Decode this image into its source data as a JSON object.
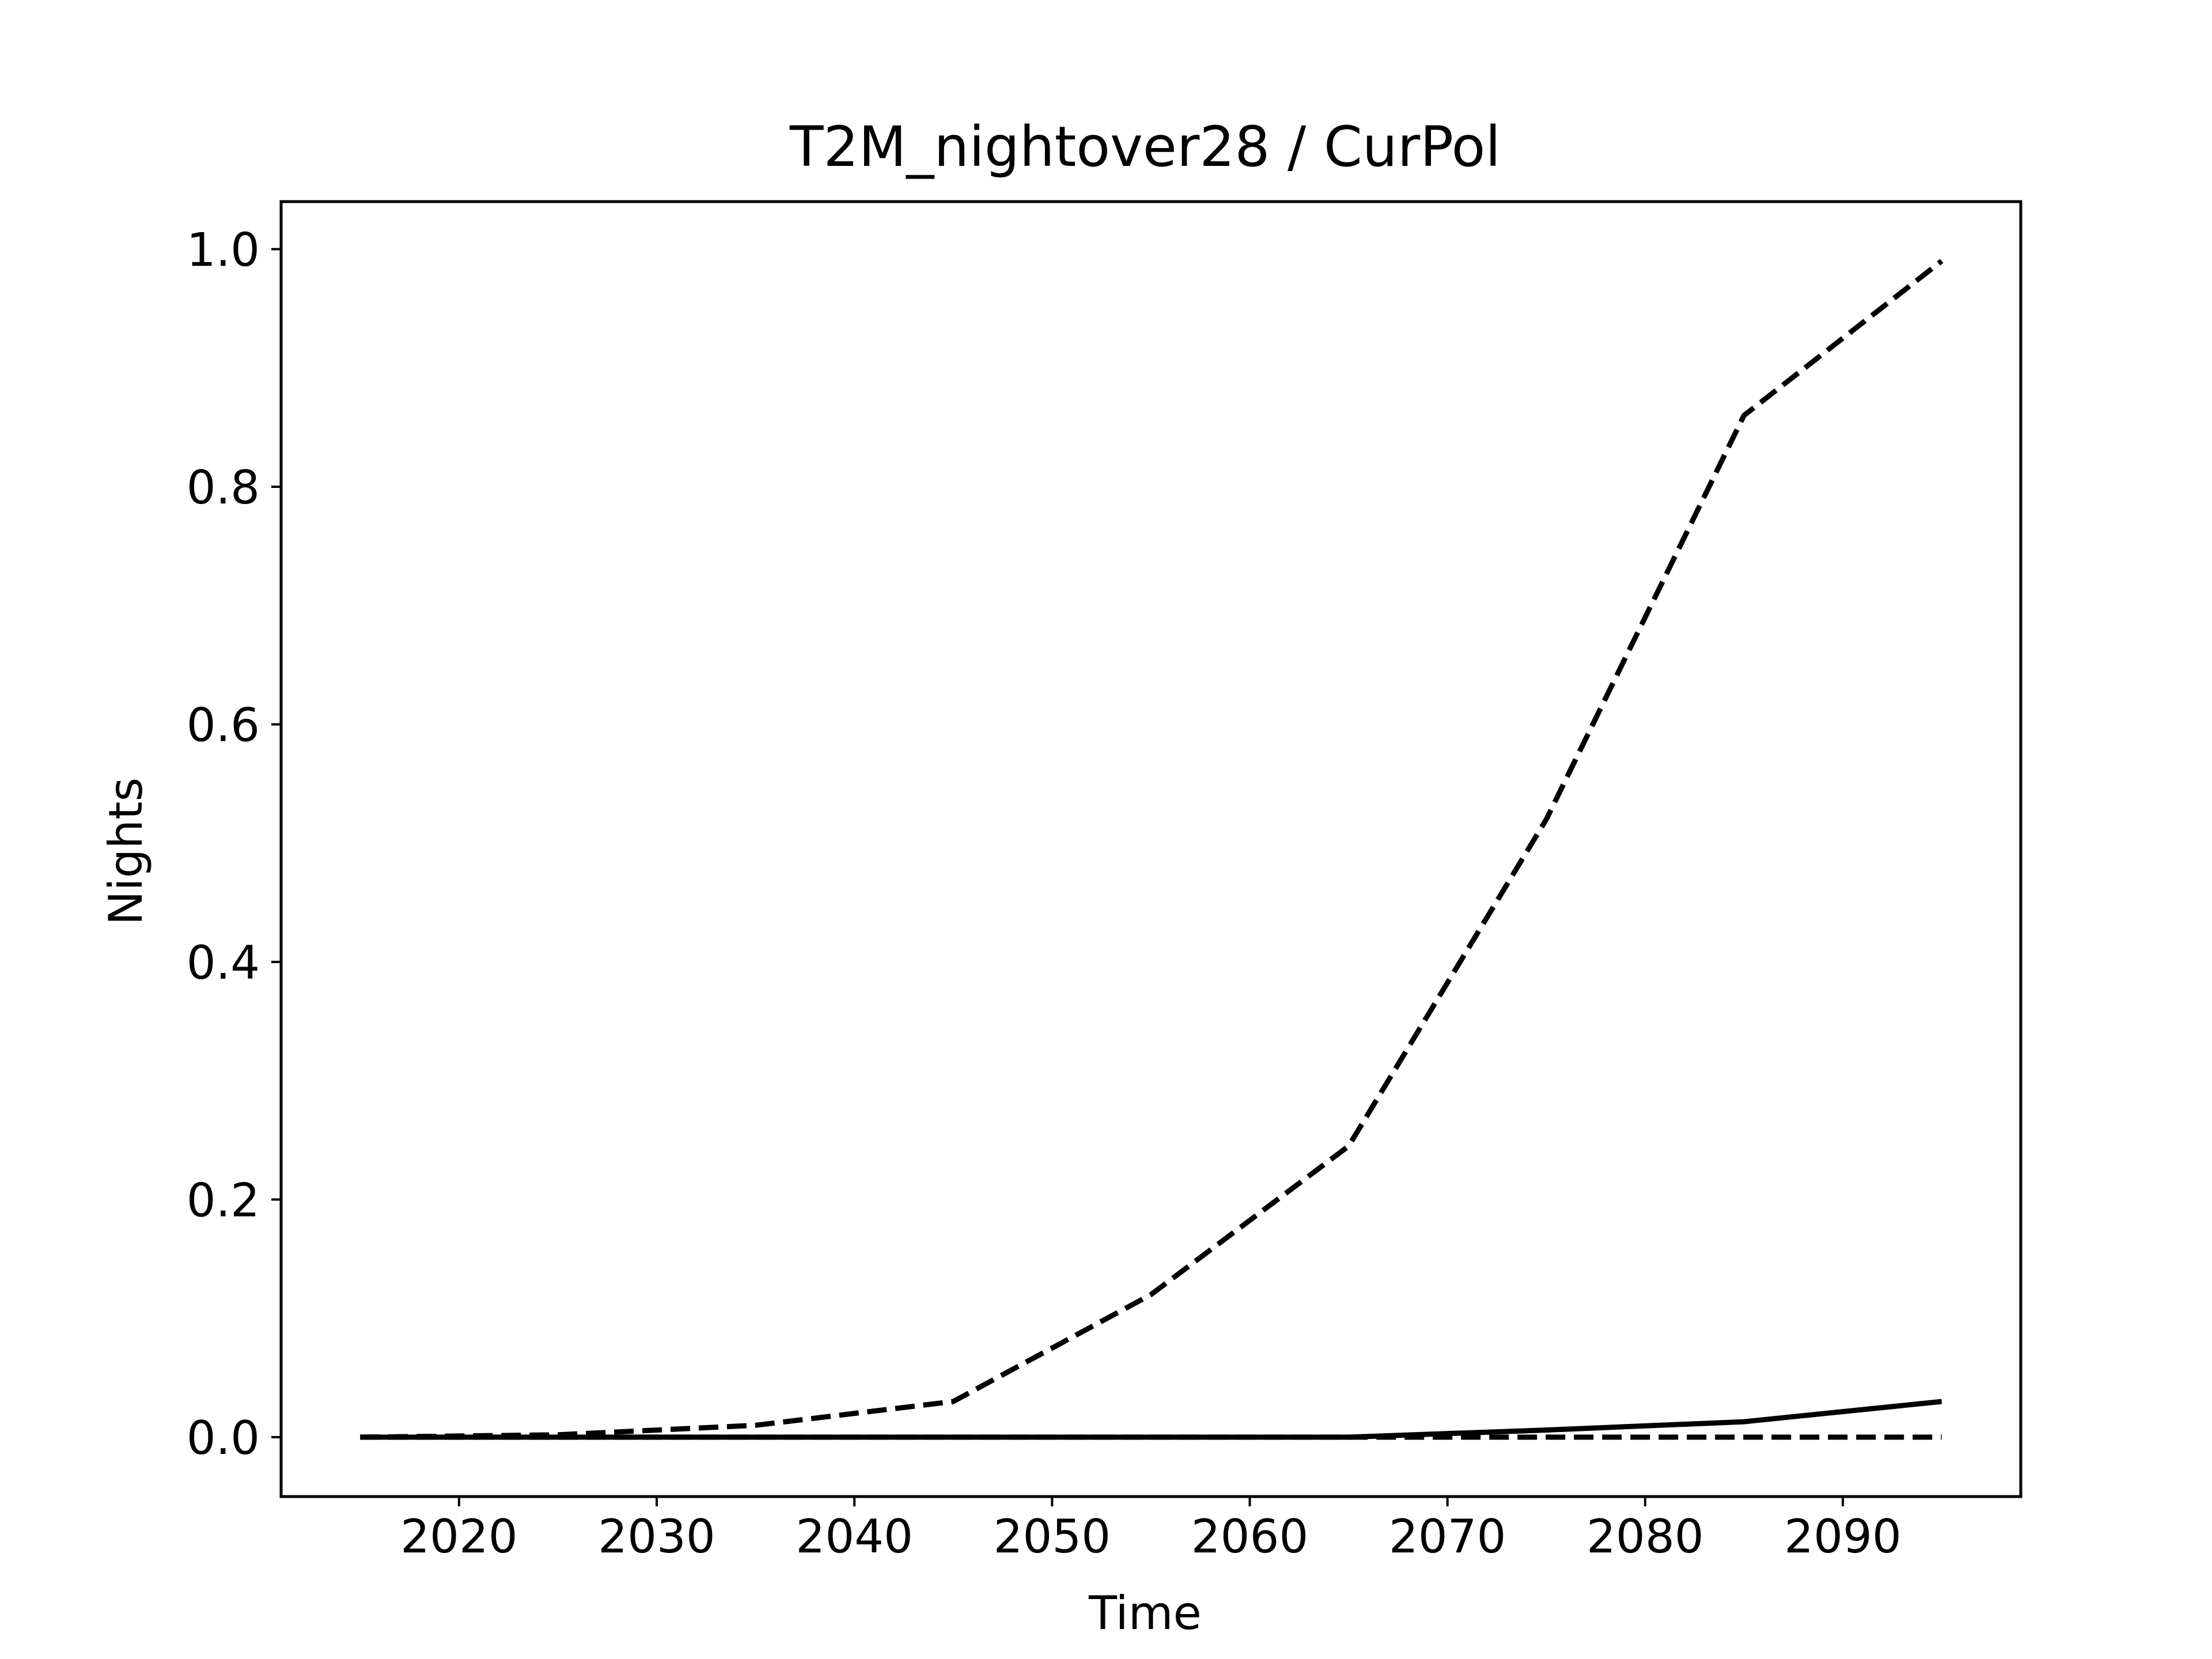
{
  "chart_data": {
    "type": "line",
    "title": "T2M_nightover28 / CurPol",
    "xlabel": "Time",
    "ylabel": "Nights",
    "xlim": [
      2011,
      2099
    ],
    "ylim": [
      -0.05,
      1.04
    ],
    "x_ticks": [
      2020,
      2030,
      2040,
      2050,
      2060,
      2070,
      2080,
      2090
    ],
    "y_ticks": [
      0.0,
      0.2,
      0.4,
      0.6,
      0.8,
      1.0
    ],
    "y_tick_labels": [
      "0.0",
      "0.2",
      "0.4",
      "0.6",
      "0.8",
      "1.0"
    ],
    "grid": false,
    "legend": "none",
    "x": [
      2015,
      2025,
      2035,
      2045,
      2055,
      2065,
      2075,
      2085,
      2095
    ],
    "series": [
      {
        "style": "dashed",
        "color": "#000000",
        "values": [
          0.0,
          0.002,
          0.01,
          0.03,
          0.12,
          0.245,
          0.52,
          0.86,
          0.99
        ]
      },
      {
        "style": "solid",
        "color": "#000000",
        "values": [
          0.0,
          0.0,
          0.0,
          0.0,
          0.0,
          0.0,
          0.006,
          0.013,
          0.03
        ]
      },
      {
        "style": "dashed",
        "color": "#000000",
        "values": [
          0.0,
          0.0,
          0.0,
          0.0,
          0.0,
          0.0,
          0.0,
          0.0,
          0.0
        ]
      }
    ]
  }
}
